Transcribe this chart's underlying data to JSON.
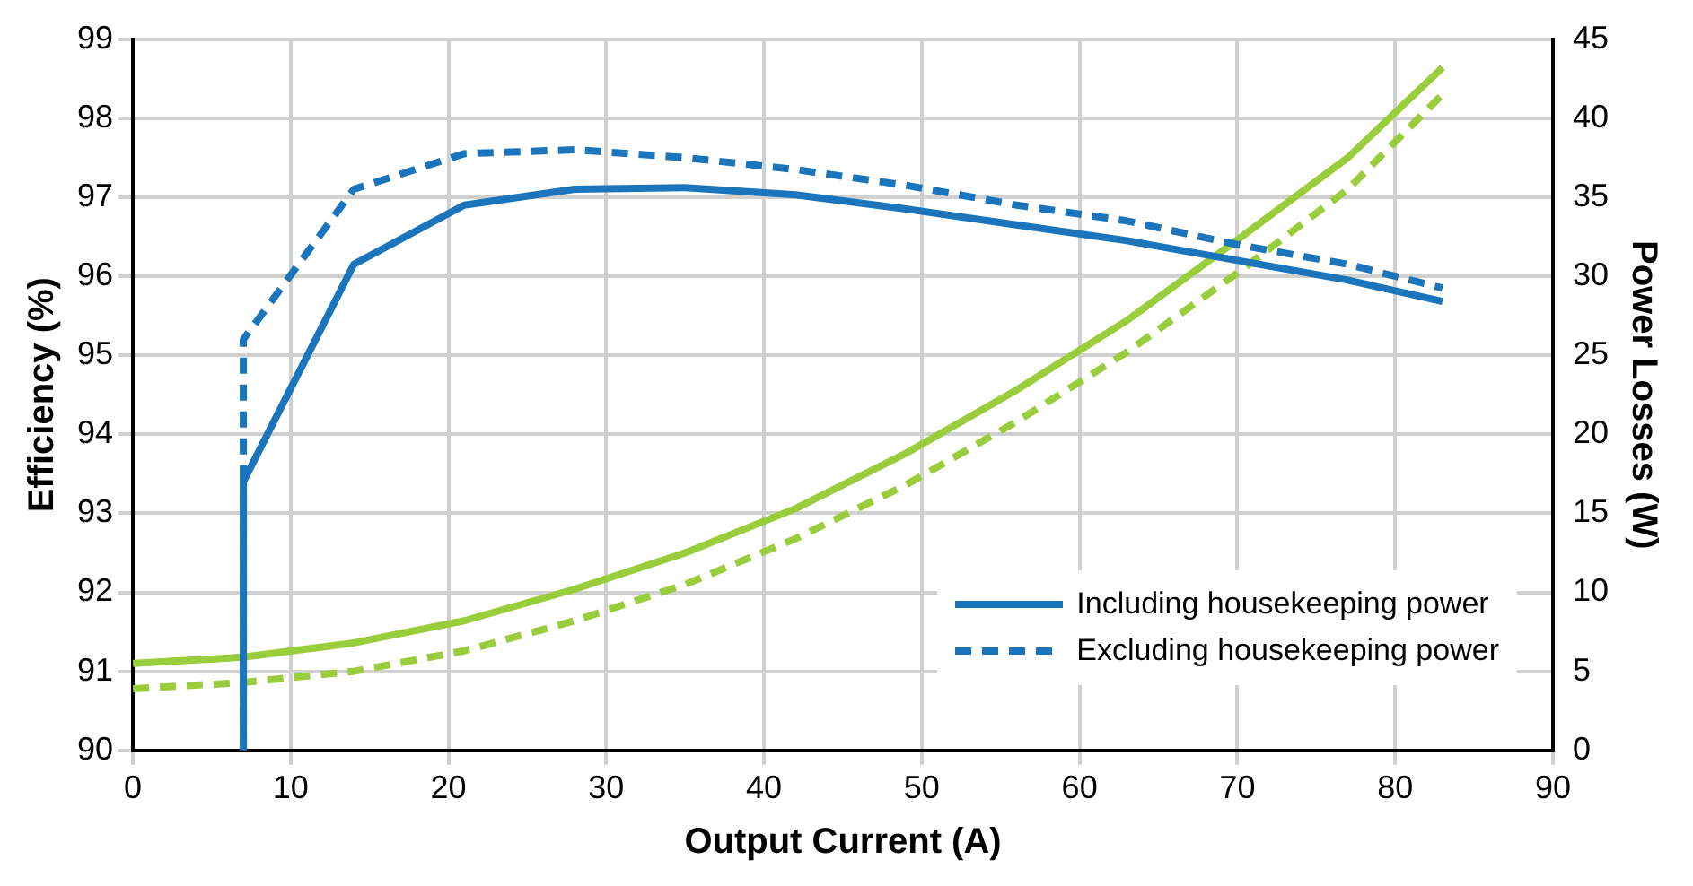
{
  "chart_data": {
    "type": "line",
    "xlabel": "Output Current (A)",
    "ylabel": "Efficiency (%)",
    "y2label": "Power Losses (W)",
    "xlim": [
      0,
      90
    ],
    "xticks": [
      0,
      10,
      20,
      30,
      40,
      50,
      60,
      70,
      80,
      90
    ],
    "ylim": [
      90,
      99
    ],
    "yticks": [
      90,
      91,
      92,
      93,
      94,
      95,
      96,
      97,
      98,
      99
    ],
    "y2lim": [
      0,
      45
    ],
    "y2ticks": [
      0,
      5,
      10,
      15,
      20,
      25,
      30,
      35,
      40,
      45
    ],
    "grid": true,
    "legend": "bottom right",
    "marker": "none",
    "series": [
      {
        "name": "Including housekeeping power",
        "color": "#1b75bc",
        "line_style": "solid",
        "x": [
          7,
          7,
          14,
          21,
          28,
          35,
          42,
          49,
          56,
          63,
          70,
          77,
          83
        ],
        "values": [
          90,
          93.4,
          96.15,
          96.9,
          97.1,
          97.12,
          97.03,
          96.85,
          96.65,
          96.45,
          96.2,
          95.95,
          95.68
        ]
      },
      {
        "name": "Excluding housekeeping power",
        "color": "#1b75bc",
        "line_style": "dashed",
        "x": [
          7,
          7,
          14,
          21,
          28,
          35,
          42,
          49,
          56,
          63,
          70,
          77,
          83
        ],
        "values": [
          90,
          95.2,
          97.1,
          97.55,
          97.6,
          97.5,
          97.35,
          97.15,
          96.9,
          96.7,
          96.4,
          96.15,
          95.85
        ]
      },
      {
        "color": "#9acd3c",
        "line_style": "solid",
        "axis": "y2",
        "x": [
          0,
          7,
          14,
          21,
          28,
          35,
          42,
          49,
          56,
          63,
          70,
          77,
          83
        ],
        "values": [
          5.5,
          5.9,
          6.8,
          8.2,
          10.2,
          12.5,
          15.3,
          18.8,
          22.8,
          27.2,
          32.3,
          37.5,
          43.2
        ]
      },
      {
        "color": "#9acd3c",
        "line_style": "dashed",
        "axis": "y2",
        "x": [
          0,
          7,
          14,
          21,
          28,
          35,
          42,
          49,
          56,
          63,
          70,
          77,
          83
        ],
        "values": [
          3.9,
          4.3,
          5.0,
          6.3,
          8.2,
          10.5,
          13.4,
          16.8,
          20.8,
          25.2,
          30.2,
          35.5,
          41.5
        ]
      }
    ]
  }
}
